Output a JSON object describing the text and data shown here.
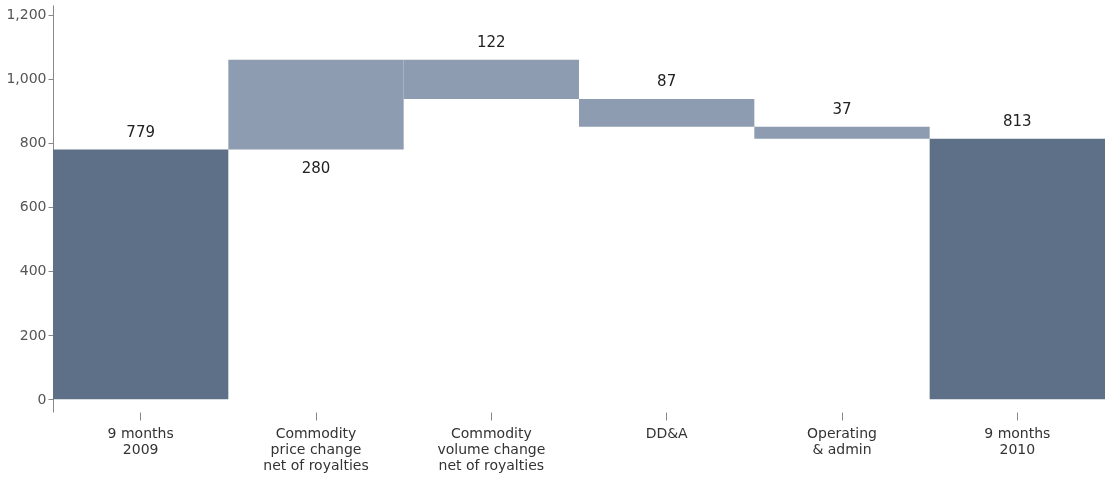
{
  "chart_data": {
    "type": "bar",
    "categories": [
      "9 months\n2009",
      "Commodity\nprice change\nnet of royalties",
      "Commodity\nvolume change\nnet of royalties",
      "DD&A",
      "Operating\n& admin",
      "9 months\n2010"
    ],
    "values": [
      779,
      280,
      -122,
      -87,
      -37,
      813
    ],
    "base": [
      0,
      779,
      1059,
      937,
      850,
      0
    ],
    "colors": [
      "#5e6f88",
      "#8d9cb0",
      "#8d9cb0",
      "#8d9cb0",
      "#8d9cb0",
      "#5e6f88"
    ],
    "value_labels": [
      "779",
      "280",
      "122",
      "87",
      "37",
      "813"
    ],
    "ylim": [
      -40,
      1230
    ],
    "yticks": [
      {
        "value": 0,
        "label": "0"
      },
      {
        "value": 200,
        "label": "200"
      },
      {
        "value": 400,
        "label": "400"
      },
      {
        "value": 600,
        "label": "600"
      },
      {
        "value": 800,
        "label": "800"
      },
      {
        "value": 1000,
        "label": "1,000"
      },
      {
        "value": 1200,
        "label": "1,200"
      }
    ],
    "grid": false
  }
}
